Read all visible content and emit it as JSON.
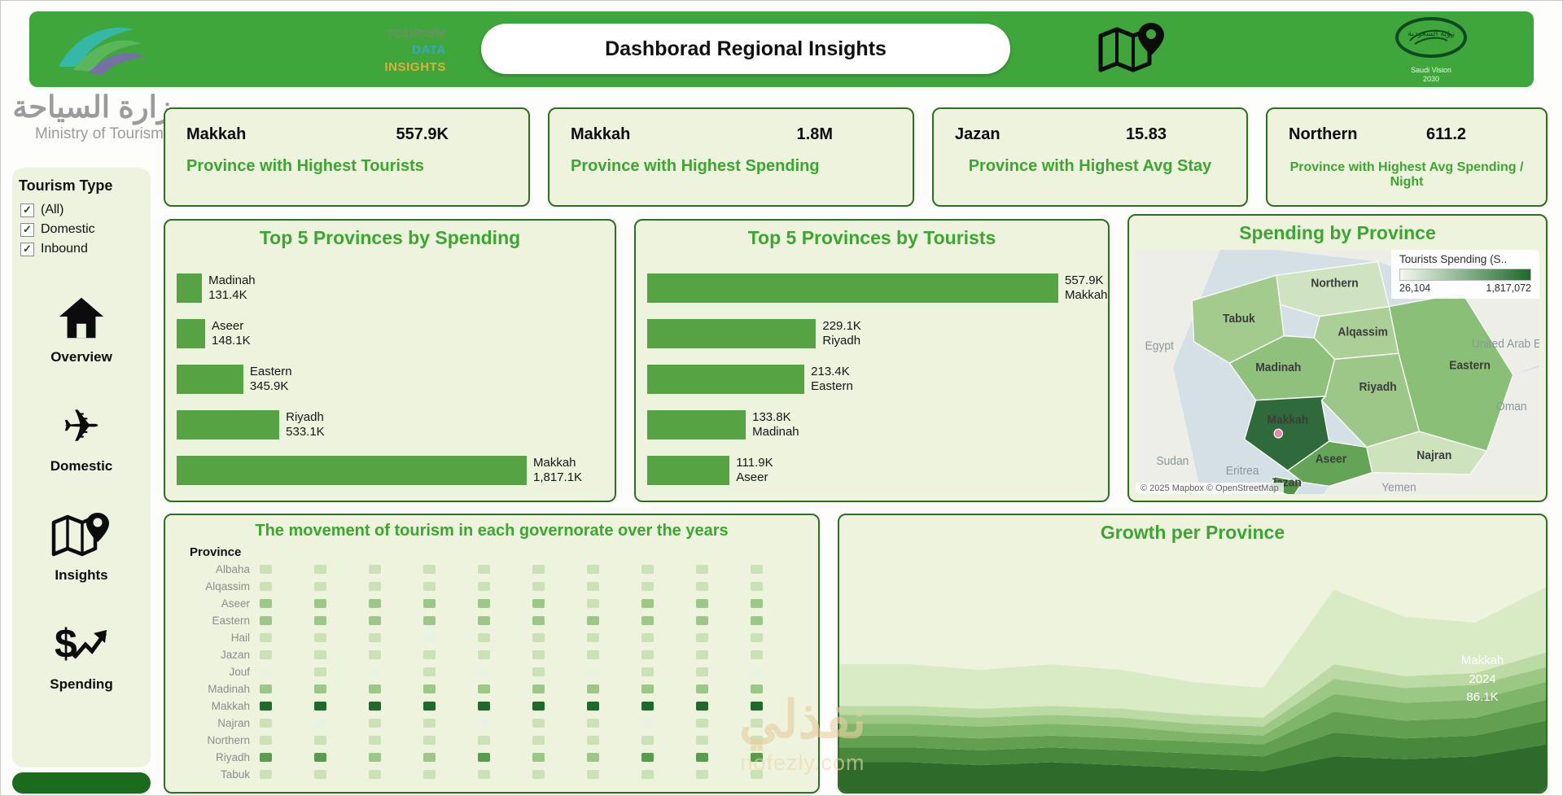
{
  "colors": {
    "header_green": "#3fa63c",
    "panel_bg": "#edf3dd",
    "panel_border": "#2f6f22",
    "title_green": "#3da532",
    "bar_green": "#56a344",
    "sidebar_bg": "#eef3df",
    "sidebar_footer": "#1c6b1c"
  },
  "header": {
    "brand_lines": [
      "TOURISM",
      "DATA",
      "INSIGHTS"
    ],
    "title": "Dashborad Regional Insights",
    "vision_logo": {
      "arabic": "رؤية السعودية",
      "caption1": "Saudi Vision",
      "caption2": "2030"
    }
  },
  "ministry": {
    "arabic": "وزارة السياحة",
    "english": "Ministry of Tourism"
  },
  "sidebar": {
    "filter_title": "Tourism Type",
    "filters": [
      {
        "label": "(All)",
        "checked": true
      },
      {
        "label": "Domestic",
        "checked": true
      },
      {
        "label": "Inbound",
        "checked": true
      }
    ],
    "nav": [
      {
        "label": "Overview",
        "icon": "home-icon"
      },
      {
        "label": "Domestic",
        "icon": "plane-icon"
      },
      {
        "label": "Insights",
        "icon": "map-pin-icon"
      },
      {
        "label": "Spending",
        "icon": "dollar-growth-icon"
      }
    ]
  },
  "kpis": [
    {
      "province": "Makkah",
      "value": "557.9K",
      "caption": "Province with Highest Tourists"
    },
    {
      "province": "Makkah",
      "value": "1.8M",
      "caption": "Province with Highest Spending"
    },
    {
      "province": "Jazan",
      "value": "15.83",
      "caption": "Province with Highest Avg Stay"
    },
    {
      "province": "Northern",
      "value": "611.2",
      "caption": "Province with Highest Avg Spending / Night"
    }
  ],
  "watermark": {
    "line1": "نفذلي",
    "line2": "nofezly.com"
  },
  "chart_data": [
    {
      "id": "spending_top5",
      "type": "bar",
      "orientation": "horizontal",
      "title": "Top 5 Provinces by Spending",
      "categories": [
        "Madinah",
        "Aseer",
        "Eastern",
        "Riyadh",
        "Makkah"
      ],
      "values": [
        131.4,
        148.1,
        345.9,
        533.1,
        1817.1
      ],
      "value_labels": [
        "131.4K",
        "148.1K",
        "345.9K",
        "533.1K",
        "1,817.1K"
      ],
      "label_order": "name-first",
      "bar_color": "#56a344",
      "xlim": [
        0,
        1817.1
      ]
    },
    {
      "id": "tourists_top5",
      "type": "bar",
      "orientation": "horizontal",
      "title": "Top 5 Provinces by Tourists",
      "categories": [
        "Makkah",
        "Riyadh",
        "Eastern",
        "Madinah",
        "Aseer"
      ],
      "values": [
        557.9,
        229.1,
        213.4,
        133.8,
        111.9
      ],
      "value_labels": [
        "557.9K",
        "229.1K",
        "213.4K",
        "133.8K",
        "111.9K"
      ],
      "label_order": "value-first",
      "bar_color": "#56a344",
      "xlim": [
        0,
        557.9
      ]
    },
    {
      "id": "spending_map",
      "type": "heatmap",
      "subtype": "choropleth",
      "title": "Spending by Province",
      "legend": {
        "title": "Tourists Spending (S..",
        "min_label": "26,104",
        "max_label": "1,817,072",
        "min_color": "#f2f8ec",
        "max_color": "#1d6a2b"
      },
      "regions": [
        {
          "name": "Northern",
          "fill": "#cfe3c0"
        },
        {
          "name": "Tabuk",
          "fill": "#a3cb8e"
        },
        {
          "name": "Alqassim",
          "fill": "#aacf97"
        },
        {
          "name": "Madinah",
          "fill": "#8fc17c"
        },
        {
          "name": "Eastern",
          "fill": "#8abf77"
        },
        {
          "name": "Riyadh",
          "fill": "#9cc789"
        },
        {
          "name": "Makkah",
          "fill": "#2f6b3a"
        },
        {
          "name": "Aseer",
          "fill": "#63a457"
        },
        {
          "name": "Najran",
          "fill": "#cde2bd"
        },
        {
          "name": "Jazan",
          "fill": "#4f9448"
        }
      ],
      "neighbors": [
        "Egypt",
        "Sudan",
        "Eritrea",
        "Yemen",
        "Oman",
        "United Arab Emirates"
      ],
      "attribution": "© 2025 Mapbox © OpenStreetMap"
    },
    {
      "id": "movement_heatmap",
      "type": "heatmap",
      "title": "The movement of tourism in each governorate over the years",
      "row_header": "Province",
      "rows": [
        "Albaha",
        "Alqassim",
        "Aseer",
        "Eastern",
        "Hail",
        "Jazan",
        "Jouf",
        "Madinah",
        "Makkah",
        "Najran",
        "Northern",
        "Riyadh",
        "Tabuk"
      ],
      "columns": 10,
      "palette": [
        "#eaf3e2",
        "#cbe2b6",
        "#9cc887",
        "#569e49",
        "#1d6a2b"
      ],
      "levels": [
        [
          1,
          1,
          1,
          1,
          1,
          1,
          1,
          1,
          1,
          1
        ],
        [
          1,
          1,
          1,
          1,
          1,
          1,
          1,
          1,
          1,
          1
        ],
        [
          2,
          2,
          2,
          2,
          2,
          2,
          1,
          2,
          2,
          2
        ],
        [
          2,
          2,
          2,
          2,
          2,
          2,
          2,
          2,
          2,
          2
        ],
        [
          1,
          1,
          1,
          0,
          1,
          1,
          1,
          1,
          1,
          1
        ],
        [
          1,
          1,
          1,
          1,
          1,
          1,
          1,
          1,
          1,
          1
        ],
        [
          0,
          1,
          0,
          1,
          0,
          1,
          0,
          1,
          1,
          0
        ],
        [
          2,
          2,
          2,
          2,
          2,
          2,
          2,
          2,
          2,
          2
        ],
        [
          4,
          4,
          4,
          4,
          4,
          4,
          4,
          4,
          4,
          4
        ],
        [
          1,
          0,
          1,
          1,
          0,
          1,
          1,
          0,
          1,
          1
        ],
        [
          1,
          1,
          1,
          1,
          1,
          1,
          1,
          1,
          1,
          1
        ],
        [
          3,
          3,
          2,
          2,
          3,
          2,
          2,
          3,
          3,
          3
        ],
        [
          1,
          1,
          1,
          1,
          1,
          1,
          1,
          1,
          1,
          1
        ]
      ]
    },
    {
      "id": "growth_area",
      "type": "area",
      "stacked": true,
      "title": "Growth per Province",
      "annotation": {
        "lines": [
          "Makkah",
          "2024",
          "86.1K"
        ]
      },
      "x": [
        0,
        1,
        2,
        3,
        4,
        5,
        6,
        7,
        8,
        9,
        10
      ],
      "series": [
        {
          "name": "band-1",
          "color": "#2e6b2b",
          "values": [
            10,
            10,
            9,
            10,
            9,
            8,
            7,
            12,
            11,
            12,
            16
          ]
        },
        {
          "name": "band-2",
          "color": "#47883c",
          "values": [
            5,
            5,
            5,
            5,
            5,
            5,
            5,
            8,
            7,
            7,
            8
          ]
        },
        {
          "name": "band-3",
          "color": "#62a050",
          "values": [
            4,
            4,
            4,
            4,
            4,
            4,
            4,
            7,
            6,
            6,
            7
          ]
        },
        {
          "name": "band-4",
          "color": "#7fb569",
          "values": [
            4,
            4,
            4,
            4,
            4,
            3,
            3,
            6,
            6,
            6,
            6
          ]
        },
        {
          "name": "band-5",
          "color": "#9cc886",
          "values": [
            3,
            3,
            3,
            3,
            3,
            3,
            3,
            5,
            5,
            5,
            5
          ]
        },
        {
          "name": "band-6",
          "color": "#bcdaa4",
          "values": [
            3,
            3,
            3,
            3,
            3,
            3,
            3,
            5,
            4,
            4,
            5
          ]
        },
        {
          "name": "band-7",
          "color": "#d9ebc4",
          "values": [
            14,
            14,
            13,
            14,
            13,
            11,
            10,
            25,
            20,
            17,
            22
          ]
        }
      ]
    }
  ]
}
